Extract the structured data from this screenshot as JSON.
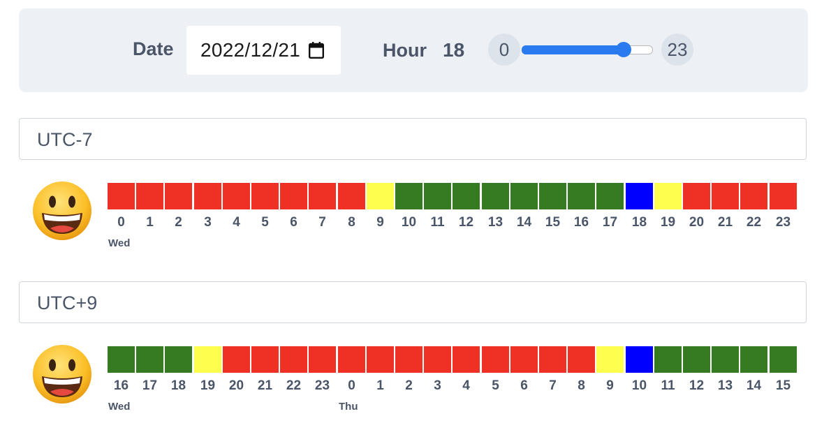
{
  "controls": {
    "date_label": "Date",
    "date_value": "2022/12/21",
    "hour_label": "Hour",
    "hour_value": "18",
    "slider_min": "0",
    "slider_max": "23",
    "slider_value": 18,
    "slider_range": [
      0,
      23
    ]
  },
  "colors": {
    "red": "#ee3124",
    "yellow": "#fefe4e",
    "green": "#367b22",
    "blue": "#0000fe",
    "accent": "#2a7bf0"
  },
  "timezones": [
    {
      "name": "UTC-7",
      "emoji": "grinning-face-icon",
      "hours": [
        {
          "h": "0",
          "c": "red",
          "day": "Wed"
        },
        {
          "h": "1",
          "c": "red"
        },
        {
          "h": "2",
          "c": "red"
        },
        {
          "h": "3",
          "c": "red"
        },
        {
          "h": "4",
          "c": "red"
        },
        {
          "h": "5",
          "c": "red"
        },
        {
          "h": "6",
          "c": "red"
        },
        {
          "h": "7",
          "c": "red"
        },
        {
          "h": "8",
          "c": "red"
        },
        {
          "h": "9",
          "c": "yellow"
        },
        {
          "h": "10",
          "c": "green"
        },
        {
          "h": "11",
          "c": "green"
        },
        {
          "h": "12",
          "c": "green"
        },
        {
          "h": "13",
          "c": "green"
        },
        {
          "h": "14",
          "c": "green"
        },
        {
          "h": "15",
          "c": "green"
        },
        {
          "h": "16",
          "c": "green"
        },
        {
          "h": "17",
          "c": "green"
        },
        {
          "h": "18",
          "c": "blue"
        },
        {
          "h": "19",
          "c": "yellow"
        },
        {
          "h": "20",
          "c": "red"
        },
        {
          "h": "21",
          "c": "red"
        },
        {
          "h": "22",
          "c": "red"
        },
        {
          "h": "23",
          "c": "red"
        }
      ]
    },
    {
      "name": "UTC+9",
      "emoji": "grinning-face-icon",
      "hours": [
        {
          "h": "16",
          "c": "green",
          "day": "Wed"
        },
        {
          "h": "17",
          "c": "green"
        },
        {
          "h": "18",
          "c": "green"
        },
        {
          "h": "19",
          "c": "yellow"
        },
        {
          "h": "20",
          "c": "red"
        },
        {
          "h": "21",
          "c": "red"
        },
        {
          "h": "22",
          "c": "red"
        },
        {
          "h": "23",
          "c": "red"
        },
        {
          "h": "0",
          "c": "red",
          "day": "Thu"
        },
        {
          "h": "1",
          "c": "red"
        },
        {
          "h": "2",
          "c": "red"
        },
        {
          "h": "3",
          "c": "red"
        },
        {
          "h": "4",
          "c": "red"
        },
        {
          "h": "5",
          "c": "red"
        },
        {
          "h": "6",
          "c": "red"
        },
        {
          "h": "7",
          "c": "red"
        },
        {
          "h": "8",
          "c": "red"
        },
        {
          "h": "9",
          "c": "yellow"
        },
        {
          "h": "10",
          "c": "blue"
        },
        {
          "h": "11",
          "c": "green"
        },
        {
          "h": "12",
          "c": "green"
        },
        {
          "h": "13",
          "c": "green"
        },
        {
          "h": "14",
          "c": "green"
        },
        {
          "h": "15",
          "c": "green"
        }
      ]
    }
  ]
}
